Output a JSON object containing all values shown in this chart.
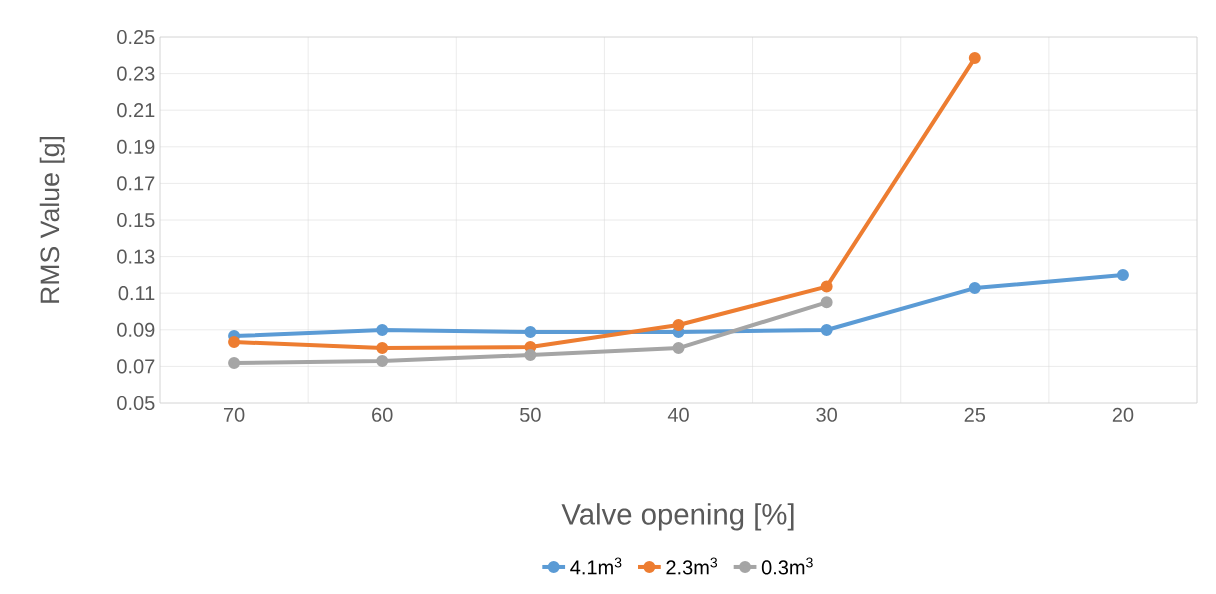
{
  "chart_data": {
    "type": "line",
    "xlabel": "Valve opening [%]",
    "ylabel": "RMS Value [g]",
    "categories": [
      "70",
      "60",
      "50",
      "40",
      "30",
      "25",
      "20"
    ],
    "series": [
      {
        "name": "4.1m$^{3}$",
        "color": "#5b9bd5",
        "values": [
          0.0866,
          0.0899,
          0.0888,
          0.0888,
          0.0899,
          0.1128,
          0.12
        ]
      },
      {
        "name": "2.3m$^{3}$",
        "color": "#ed7d31",
        "values": [
          0.0833,
          0.08,
          0.0806,
          0.0926,
          0.1136,
          0.2385,
          null
        ]
      },
      {
        "name": "0.3m$^{3}$",
        "color": "#a5a5a5",
        "values": [
          0.0719,
          0.073,
          0.0762,
          0.08,
          0.105,
          null,
          null
        ]
      }
    ],
    "ylim": [
      0.05,
      0.25
    ],
    "yticks": [
      0.05,
      0.07,
      0.09,
      0.11,
      0.13,
      0.15,
      0.17,
      0.19,
      0.21,
      0.23,
      0.25
    ],
    "grid": true,
    "legend": "bottom",
    "marker": "circle",
    "line_style": "solid"
  }
}
